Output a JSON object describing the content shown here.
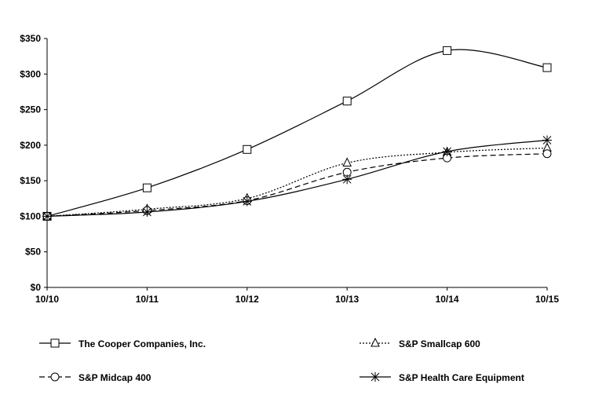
{
  "chart_data": {
    "type": "line",
    "categories": [
      "10/10",
      "10/11",
      "10/12",
      "10/13",
      "10/14",
      "10/15"
    ],
    "y_ticks": [
      "$0",
      "$50",
      "$100",
      "$150",
      "$200",
      "$250",
      "$300",
      "$350"
    ],
    "ylim": [
      0,
      350
    ],
    "grid": false,
    "legend_position": "bottom",
    "series": [
      {
        "name": "The Cooper Companies, Inc.",
        "marker": "square",
        "dash": "solid",
        "values": [
          100,
          140,
          194,
          262,
          333,
          309
        ]
      },
      {
        "name": "S&P Smallcap 600",
        "marker": "triangle",
        "dash": "dotted",
        "values": [
          100,
          110,
          125,
          175,
          190,
          196
        ]
      },
      {
        "name": "S&P Midcap 400",
        "marker": "circle",
        "dash": "dashed",
        "values": [
          100,
          108,
          122,
          162,
          182,
          188
        ]
      },
      {
        "name": "S&P Health Care Equipment",
        "marker": "asterisk",
        "dash": "solid",
        "values": [
          100,
          106,
          121,
          152,
          191,
          207
        ]
      }
    ]
  }
}
